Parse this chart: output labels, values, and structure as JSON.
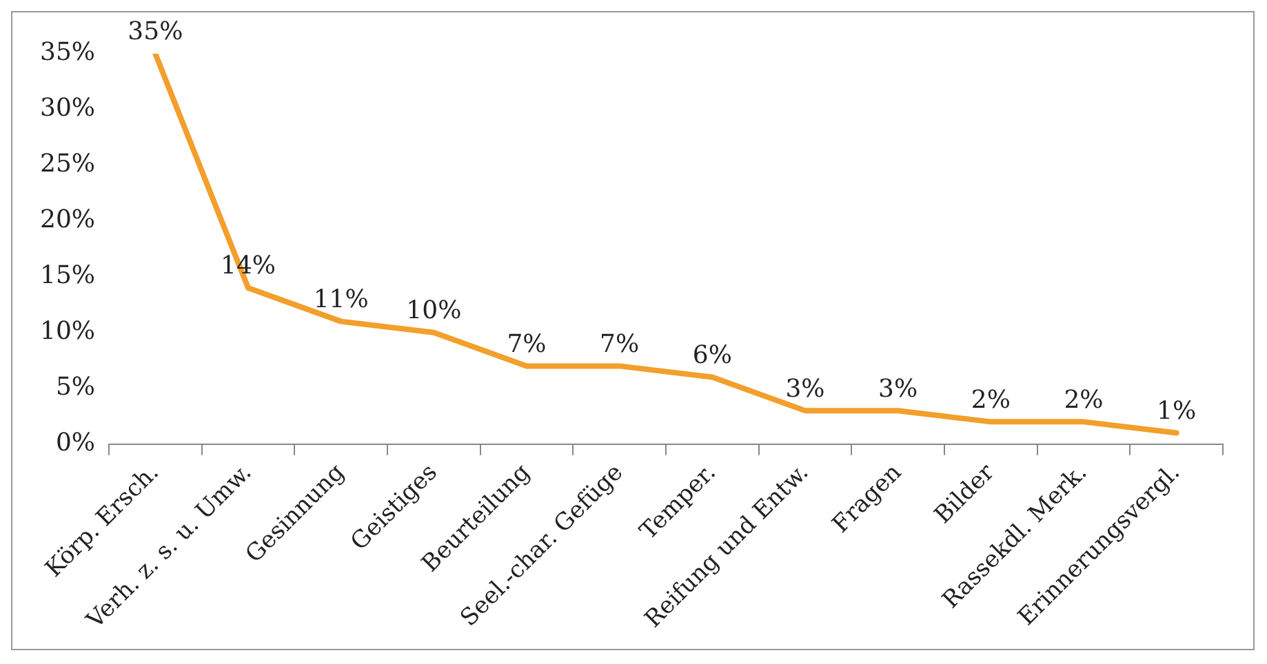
{
  "chart_data": {
    "type": "line",
    "categories": [
      "Körp. Ersch.",
      "Verh. z. s. u. Umw.",
      "Gesinnung",
      "Geistiges",
      "Beurteilung",
      "Seel.-char. Gefüge",
      "Temper.",
      "Reifung und Entw.",
      "Fragen",
      "Bilder",
      "Rassekdl. Merk.",
      "Erinnerungsvergl."
    ],
    "series": [
      {
        "color": "#f29f2b",
        "values": [
          35,
          14,
          11,
          10,
          7,
          7,
          6,
          3,
          3,
          2,
          2,
          1
        ]
      }
    ],
    "ylim": [
      0,
      35
    ],
    "yticks": [
      {
        "value": 0,
        "label": "0%"
      },
      {
        "value": 5,
        "label": "5%"
      },
      {
        "value": 10,
        "label": "10%"
      },
      {
        "value": 15,
        "label": "15%"
      },
      {
        "value": 20,
        "label": "20%"
      },
      {
        "value": 25,
        "label": "25%"
      },
      {
        "value": 30,
        "label": "30%"
      },
      {
        "value": 35,
        "label": "35%"
      }
    ],
    "value_labels": [
      "35%",
      "14%",
      "11%",
      "10%",
      "7%",
      "7%",
      "6%",
      "3%",
      "3%",
      "2%",
      "2%",
      "1%"
    ],
    "grid": false,
    "legend": false,
    "marker": "none",
    "line_style": "solid"
  }
}
